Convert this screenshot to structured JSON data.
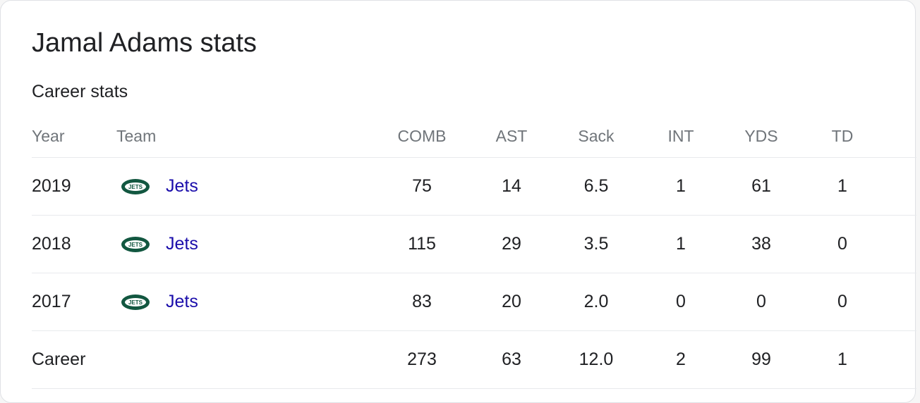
{
  "title": "Jamal Adams stats",
  "section_title": "Career stats",
  "columns": {
    "year": "Year",
    "team": "Team",
    "comb": "COMB",
    "ast": "AST",
    "sack": "Sack",
    "int": "INT",
    "yds": "YDS",
    "td": "TD"
  },
  "rows": [
    {
      "year": "2019",
      "team": "Jets",
      "comb": "75",
      "ast": "14",
      "sack": "6.5",
      "int": "1",
      "yds": "61",
      "td": "1"
    },
    {
      "year": "2018",
      "team": "Jets",
      "comb": "115",
      "ast": "29",
      "sack": "3.5",
      "int": "1",
      "yds": "38",
      "td": "0"
    },
    {
      "year": "2017",
      "team": "Jets",
      "comb": "83",
      "ast": "20",
      "sack": "2.0",
      "int": "0",
      "yds": "0",
      "td": "0"
    }
  ],
  "career": {
    "label": "Career",
    "comb": "273",
    "ast": "63",
    "sack": "12.0",
    "int": "2",
    "yds": "99",
    "td": "1"
  },
  "team_logo_icon": "jets-logo-icon",
  "colors": {
    "link": "#1a0dab",
    "logo_green": "#125740"
  }
}
